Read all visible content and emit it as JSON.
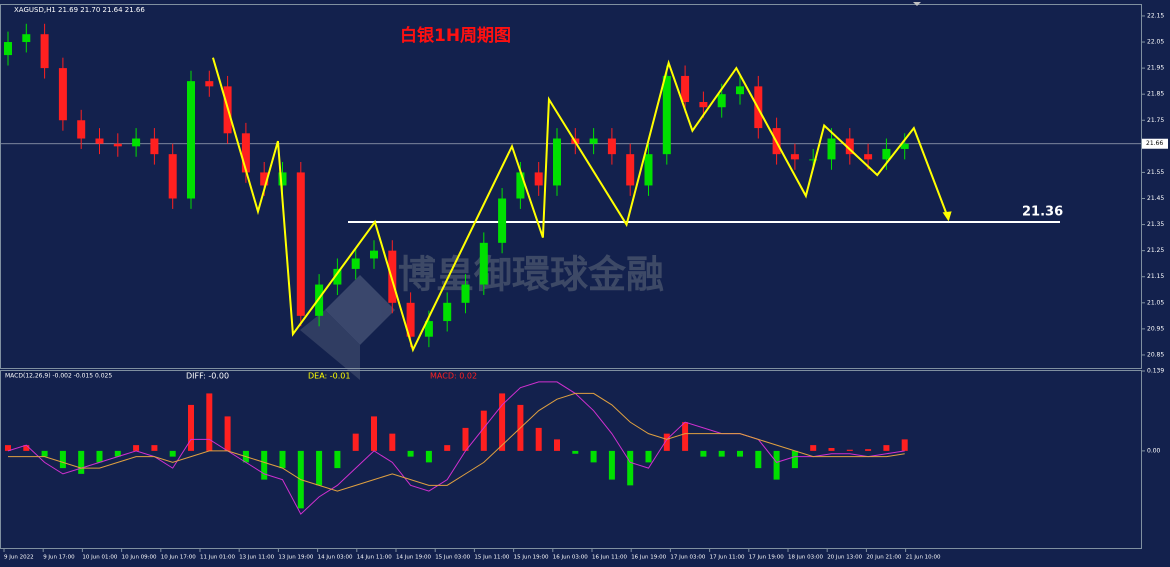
{
  "chart_data": [
    {
      "type": "candlestick",
      "symbol_info": "XAGUSD,H1  21.69 21.70 21.64 21.66",
      "title": "白银1H周期图",
      "watermark": "博皇御環球金融",
      "open": [
        22.0,
        22.05,
        22.08,
        21.95,
        21.75,
        21.68,
        21.66,
        21.65,
        21.68,
        21.62,
        21.45,
        21.9,
        21.88,
        21.7,
        21.55,
        21.5,
        21.55,
        21.0,
        21.12,
        21.18,
        21.22,
        21.25,
        21.05,
        20.92,
        20.98,
        21.05,
        21.12,
        21.28,
        21.45,
        21.55,
        21.5,
        21.68,
        21.66,
        21.68,
        21.62,
        21.5,
        21.62,
        21.92,
        21.82,
        21.8,
        21.85,
        21.88,
        21.72,
        21.62,
        21.6,
        21.6,
        21.68,
        21.62,
        21.6,
        21.64
      ],
      "high": [
        22.09,
        22.12,
        22.12,
        21.99,
        21.79,
        21.72,
        21.7,
        21.72,
        21.72,
        21.66,
        21.94,
        21.94,
        21.92,
        21.74,
        21.59,
        21.59,
        21.59,
        21.16,
        21.22,
        21.26,
        21.29,
        21.29,
        21.09,
        21.02,
        21.09,
        21.16,
        21.32,
        21.49,
        21.59,
        21.59,
        21.72,
        21.72,
        21.72,
        21.72,
        21.66,
        21.66,
        21.96,
        21.96,
        21.86,
        21.89,
        21.92,
        21.92,
        21.76,
        21.66,
        21.64,
        21.72,
        21.72,
        21.66,
        21.68,
        21.7
      ],
      "low": [
        21.96,
        22.01,
        21.91,
        21.71,
        21.64,
        21.62,
        21.61,
        21.61,
        21.58,
        21.41,
        21.41,
        21.84,
        21.66,
        21.51,
        21.46,
        21.46,
        20.96,
        20.96,
        21.08,
        21.14,
        21.18,
        21.01,
        20.88,
        20.88,
        20.94,
        21.01,
        21.08,
        21.24,
        21.41,
        21.46,
        21.46,
        21.62,
        21.62,
        21.58,
        21.46,
        21.46,
        21.58,
        21.78,
        21.76,
        21.76,
        21.81,
        21.68,
        21.58,
        21.56,
        21.56,
        21.56,
        21.58,
        21.56,
        21.56,
        21.6
      ],
      "close": [
        22.05,
        22.08,
        21.95,
        21.75,
        21.68,
        21.66,
        21.65,
        21.68,
        21.62,
        21.45,
        21.9,
        21.88,
        21.7,
        21.55,
        21.5,
        21.55,
        21.0,
        21.12,
        21.18,
        21.22,
        21.25,
        21.05,
        20.92,
        20.98,
        21.05,
        21.12,
        21.28,
        21.45,
        21.55,
        21.5,
        21.68,
        21.66,
        21.68,
        21.62,
        21.5,
        21.62,
        21.92,
        21.82,
        21.8,
        21.85,
        21.88,
        21.72,
        21.62,
        21.6,
        21.6,
        21.68,
        21.62,
        21.6,
        21.64,
        21.66
      ],
      "up_color": "#00e000",
      "down_color": "#ff2020",
      "ylim": [
        20.8,
        22.192
      ],
      "yticks": [
        22.15,
        22.05,
        21.95,
        21.85,
        21.75,
        21.65,
        21.55,
        21.45,
        21.35,
        21.25,
        21.15,
        21.05,
        20.95,
        20.85
      ],
      "current_price": 21.66,
      "level": 21.36,
      "zigzag": {
        "color": "#ffff00",
        "x": [
          11.2,
          13.66,
          14.75,
          15.57,
          20.05,
          22.13,
          27.54,
          29.23,
          29.56,
          33.8,
          36.1,
          37.4,
          39.8,
          43.6,
          44.6,
          47.5,
          49.5,
          51.4
        ],
        "y": [
          21.99,
          21.4,
          21.67,
          20.93,
          21.36,
          20.87,
          21.65,
          21.3,
          21.83,
          21.35,
          21.97,
          21.71,
          21.95,
          21.46,
          21.73,
          21.54,
          21.72,
          21.37
        ]
      },
      "time_labels": [
        "9 Jun 2022",
        "9 Jun 17:00",
        "10 Jun 01:00",
        "10 Jun 09:00",
        "10 Jun 17:00",
        "11 Jun 01:00",
        "13 Jun 11:00",
        "13 Jun 19:00",
        "14 Jun 03:00",
        "14 Jun 11:00",
        "14 Jun 19:00",
        "15 Jun 03:00",
        "15 Jun 11:00",
        "15 Jun 19:00",
        "16 Jun 03:00",
        "16 Jun 11:00",
        "16 Jun 19:00",
        "17 Jun 03:00",
        "17 Jun 11:00",
        "17 Jun 19:00",
        "18 Jun 03:00",
        "20 Jun 13:00",
        "20 Jun 21:00",
        "21 Jun 10:00"
      ]
    },
    {
      "type": "macd",
      "label": "MACD(12,26,9) -0.002 -0.015 0.025",
      "diff_text": "DIFF:     -0.00",
      "dea_text": "DEA:    -0.01",
      "macd_text": "MACD:    0.02",
      "histogram": [
        0.01,
        0.01,
        -0.01,
        -0.03,
        -0.04,
        -0.02,
        -0.01,
        0.01,
        0.01,
        -0.01,
        0.08,
        0.1,
        0.06,
        -0.02,
        -0.05,
        -0.03,
        -0.1,
        -0.06,
        -0.03,
        0.03,
        0.06,
        0.03,
        -0.01,
        -0.02,
        0.01,
        0.04,
        0.07,
        0.1,
        0.08,
        0.04,
        0.02,
        -0.005,
        -0.02,
        -0.05,
        -0.06,
        -0.02,
        0.03,
        0.05,
        -0.01,
        -0.01,
        -0.01,
        -0.03,
        -0.05,
        -0.03,
        0.01,
        0.005,
        0.002,
        0.003,
        0.01,
        0.02
      ],
      "diff": [
        0.0,
        0.01,
        -0.02,
        -0.04,
        -0.03,
        -0.02,
        -0.01,
        0.0,
        -0.01,
        -0.03,
        0.02,
        0.02,
        0.0,
        -0.02,
        -0.04,
        -0.05,
        -0.11,
        -0.08,
        -0.06,
        -0.03,
        0.0,
        -0.02,
        -0.06,
        -0.07,
        -0.05,
        0.0,
        0.04,
        0.08,
        0.11,
        0.12,
        0.12,
        0.1,
        0.07,
        0.03,
        -0.02,
        -0.03,
        0.02,
        0.05,
        0.04,
        0.03,
        0.03,
        0.02,
        -0.02,
        -0.01,
        -0.01,
        -0.005,
        -0.005,
        -0.01,
        -0.005,
        0.0
      ],
      "dea": [
        -0.01,
        -0.01,
        -0.01,
        -0.02,
        -0.03,
        -0.03,
        -0.02,
        -0.01,
        -0.01,
        -0.02,
        -0.01,
        0.0,
        0.0,
        -0.01,
        -0.02,
        -0.03,
        -0.05,
        -0.06,
        -0.07,
        -0.06,
        -0.05,
        -0.04,
        -0.05,
        -0.06,
        -0.06,
        -0.04,
        -0.02,
        0.01,
        0.04,
        0.07,
        0.09,
        0.1,
        0.1,
        0.08,
        0.05,
        0.03,
        0.02,
        0.03,
        0.03,
        0.03,
        0.03,
        0.02,
        0.01,
        0.0,
        -0.01,
        -0.01,
        -0.01,
        -0.01,
        -0.01,
        -0.005
      ],
      "pos_color": "#ff2020",
      "neg_color": "#00e000",
      "diff_color": "#d030d0",
      "dea_color": "#e0a040",
      "ylim": [
        -0.169,
        0.139
      ],
      "yticks": [
        0.139,
        {
          "value": 0,
          "label": "0.00"
        }
      ]
    }
  ]
}
